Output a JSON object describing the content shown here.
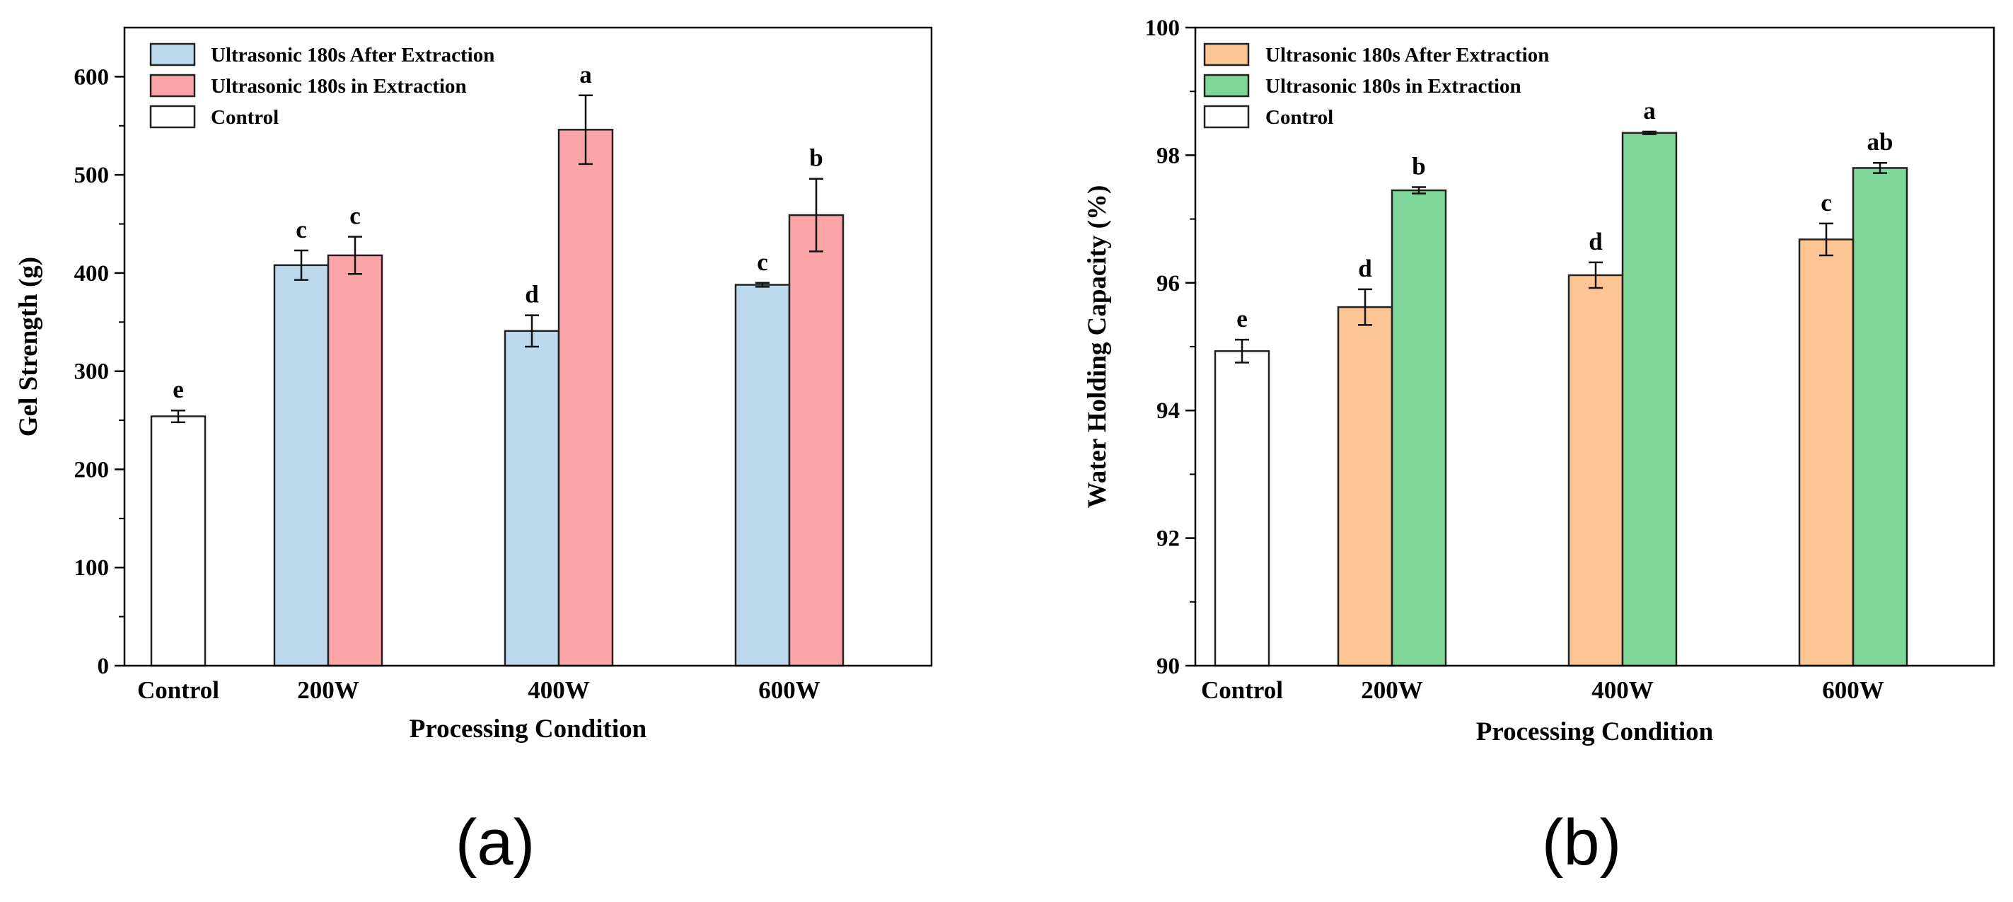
{
  "chart_data": [
    {
      "type": "bar",
      "panel_label": "(a)",
      "xlabel": "Processing Condition",
      "ylabel": "Gel Strength (g)",
      "ylim": [
        0,
        650
      ],
      "yticks": [
        "0",
        "100",
        "200",
        "300",
        "400",
        "500",
        "600"
      ],
      "ytick_values": [
        0,
        100,
        200,
        300,
        400,
        500,
        600
      ],
      "categories": [
        "Control",
        "200W",
        "400W",
        "600W"
      ],
      "legend_position": "top-left",
      "series": [
        {
          "name": "Ultrasonic 180s After Extraction",
          "color": "#bcd8ec",
          "values": [
            null,
            408,
            341,
            388
          ],
          "errors": [
            null,
            15,
            16,
            2
          ],
          "letters": [
            null,
            "c",
            "d",
            "c"
          ]
        },
        {
          "name": "Ultrasonic 180s in Extraction",
          "color": "#fca5a8",
          "values": [
            null,
            418,
            546,
            459
          ],
          "errors": [
            null,
            19,
            35,
            37
          ],
          "letters": [
            null,
            "c",
            "a",
            "b"
          ]
        },
        {
          "name": "Control",
          "color": "#ffffff",
          "values": [
            254,
            null,
            null,
            null
          ],
          "errors": [
            6,
            null,
            null,
            null
          ],
          "letters": [
            "e",
            null,
            null,
            null
          ]
        }
      ]
    },
    {
      "type": "bar",
      "panel_label": "(b)",
      "xlabel": "Processing Condition",
      "ylabel": "Water Holding Capacity (%)",
      "ylim": [
        90,
        100
      ],
      "yticks": [
        "90",
        "92",
        "94",
        "96",
        "98",
        "100"
      ],
      "ytick_values": [
        90,
        92,
        94,
        96,
        98,
        100
      ],
      "categories": [
        "Control",
        "200W",
        "400W",
        "600W"
      ],
      "legend_position": "top-left",
      "series": [
        {
          "name": "Ultrasonic 180s After Extraction",
          "color": "#fdc594",
          "values": [
            null,
            95.62,
            96.12,
            96.68
          ],
          "errors": [
            null,
            0.28,
            0.2,
            0.25
          ],
          "letters": [
            null,
            "d",
            "d",
            "c"
          ]
        },
        {
          "name": "Ultrasonic 180s in Extraction",
          "color": "#7fd699",
          "values": [
            null,
            97.45,
            98.35,
            97.8
          ],
          "errors": [
            null,
            0.05,
            0.02,
            0.08
          ],
          "letters": [
            null,
            "b",
            "a",
            "ab"
          ]
        },
        {
          "name": "Control",
          "color": "#ffffff",
          "values": [
            94.93,
            null,
            null,
            null
          ],
          "errors": [
            0.18,
            null,
            null,
            null
          ],
          "letters": [
            "e",
            null,
            null,
            null
          ]
        }
      ]
    }
  ]
}
